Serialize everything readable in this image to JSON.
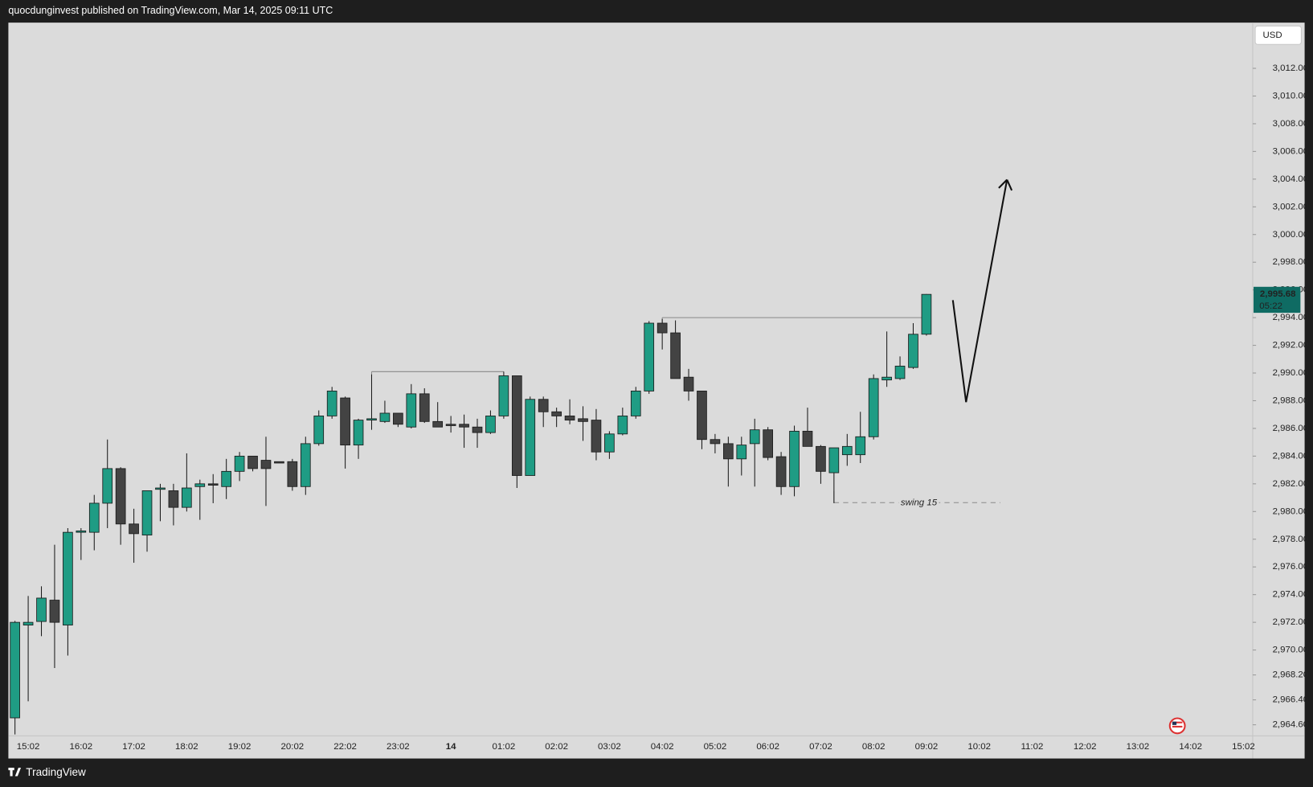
{
  "header": {
    "publisher": "quocdunginvest published on TradingView.com, Mar 14, 2025 09:11 UTC"
  },
  "footer": {
    "brand": "TradingView"
  },
  "chart_data": {
    "type": "candlestick",
    "currency": "USD",
    "up_color": "#1f9c84",
    "down_color": "#434343",
    "categories": [
      null,
      "15:02",
      null,
      null,
      null,
      "16:02",
      null,
      null,
      null,
      "17:02",
      null,
      null,
      null,
      "18:02",
      null,
      null,
      null,
      "19:02",
      null,
      null,
      null,
      "20:02",
      null,
      null,
      null,
      "22:02",
      null,
      null,
      null,
      "23:02",
      null,
      null,
      null,
      "14",
      null,
      null,
      null,
      "01:02",
      null,
      null,
      null,
      "02:02",
      null,
      null,
      null,
      "03:02",
      null,
      null,
      null,
      "04:02",
      null,
      null,
      null,
      "05:02",
      null,
      null,
      null,
      "06:02",
      null,
      null,
      null,
      "07:02",
      null,
      null,
      null,
      "08:02",
      null,
      null,
      null,
      "09:02",
      null,
      null,
      null,
      "10:02",
      null,
      null,
      null,
      "11:02",
      null,
      null,
      null,
      "12:02",
      null,
      null,
      null,
      "13:02",
      null,
      null,
      null,
      "14:02",
      null,
      null,
      null,
      "15:02"
    ],
    "open": [
      2965.1,
      2971.8,
      2972.06,
      2973.6,
      2971.8,
      2978.5,
      2978.5,
      2980.6,
      2983.1,
      2979.1,
      2978.3,
      2981.6,
      2981.5,
      2980.3,
      2981.8,
      2982.0,
      2981.8,
      2982.9,
      2984.0,
      2983.7,
      2983.6,
      2983.6,
      2981.8,
      2984.9,
      2986.9,
      2988.2,
      2984.8,
      2986.6,
      2986.5,
      2987.1,
      2986.1,
      2988.5,
      2986.5,
      2986.3,
      2986.3,
      2986.1,
      2985.7,
      2986.9,
      2989.8,
      2982.6,
      2988.1,
      2987.2,
      2986.9,
      2986.7,
      2986.6,
      2984.3,
      2985.6,
      2986.9,
      2988.7,
      2993.6,
      2992.9,
      2989.7,
      2988.7,
      2985.2,
      2984.9,
      2983.8,
      2984.9,
      2985.9,
      2983.96,
      2981.8,
      2985.8,
      2984.7,
      2982.8,
      2984.1,
      2984.1,
      2985.4,
      2989.5,
      2989.6,
      2990.4,
      2992.8,
      null,
      null,
      null,
      null,
      null,
      null,
      null,
      null,
      null,
      null,
      null,
      null,
      null,
      null,
      null,
      null,
      null,
      null,
      null,
      null,
      null,
      null,
      null,
      null
    ],
    "high": [
      2972.1,
      2973.9,
      2974.6,
      2977.6,
      2978.8,
      2978.8,
      2981.2,
      2985.2,
      2983.2,
      2980.2,
      2981.5,
      2982.0,
      2982.0,
      2984.2,
      2982.3,
      2982.7,
      2983.8,
      2984.3,
      2984.0,
      2985.4,
      2983.6,
      2983.8,
      2985.4,
      2987.3,
      2989.0,
      2988.3,
      2986.7,
      2989.9,
      2988.0,
      2987.1,
      2989.2,
      2988.9,
      2987.9,
      2986.9,
      2987.0,
      2986.7,
      2987.3,
      2990.1,
      2989.8,
      2988.3,
      2988.3,
      2987.5,
      2988.1,
      2987.6,
      2987.4,
      2985.8,
      2987.5,
      2989.0,
      2993.75,
      2993.9,
      2993.8,
      2990.3,
      2988.7,
      2985.6,
      2985.4,
      2985.4,
      2986.7,
      2986.1,
      2984.3,
      2986.2,
      2987.5,
      2984.8,
      2984.6,
      2985.6,
      2987.2,
      2989.9,
      2993.0,
      2991.2,
      2993.6,
      2995.7,
      null,
      null,
      null,
      null,
      null,
      null,
      null,
      null,
      null,
      null,
      null,
      null,
      null,
      null,
      null,
      null,
      null,
      null,
      null,
      null,
      null,
      null,
      null,
      null
    ],
    "low": [
      2963.9,
      2966.3,
      2971.0,
      2968.7,
      2969.6,
      2976.5,
      2977.2,
      2978.8,
      2977.6,
      2976.3,
      2977.1,
      2979.3,
      2979.0,
      2980.0,
      2979.4,
      2980.6,
      2980.9,
      2982.2,
      2982.9,
      2980.4,
      2983.5,
      2981.5,
      2981.2,
      2984.75,
      2986.7,
      2983.1,
      2983.8,
      2985.9,
      2986.4,
      2986.1,
      2986.0,
      2986.4,
      2986.1,
      2985.7,
      2984.6,
      2984.6,
      2985.6,
      2986.7,
      2981.7,
      2982.6,
      2986.1,
      2986.1,
      2986.3,
      2985.1,
      2983.7,
      2983.8,
      2985.5,
      2986.7,
      2988.5,
      2991.7,
      2989.6,
      2988.0,
      2984.5,
      2984.2,
      2981.8,
      2982.6,
      2981.8,
      2983.7,
      2981.2,
      2981.1,
      2984.7,
      2982.0,
      2980.6,
      2983.3,
      2983.5,
      2985.2,
      2989.0,
      2989.5,
      2990.3,
      2992.7,
      null,
      null,
      null,
      null,
      null,
      null,
      null,
      null,
      null,
      null,
      null,
      null,
      null,
      null,
      null,
      null,
      null,
      null,
      null,
      null,
      null,
      null,
      null,
      null
    ],
    "close": [
      2972.0,
      2972.0,
      2973.75,
      2972.0,
      2978.5,
      2978.6,
      2980.6,
      2983.1,
      2979.1,
      2978.4,
      2981.5,
      2981.7,
      2980.3,
      2981.7,
      2982.0,
      2981.9,
      2982.9,
      2984.0,
      2983.1,
      2983.1,
      2983.5,
      2981.8,
      2984.9,
      2986.9,
      2988.7,
      2984.8,
      2986.6,
      2986.7,
      2987.1,
      2986.3,
      2988.5,
      2986.5,
      2986.1,
      2986.2,
      2986.1,
      2985.7,
      2986.9,
      2989.8,
      2982.6,
      2988.1,
      2987.2,
      2986.9,
      2986.6,
      2986.5,
      2984.3,
      2985.6,
      2986.9,
      2988.7,
      2993.6,
      2992.9,
      2989.6,
      2988.7,
      2985.2,
      2984.9,
      2983.8,
      2984.8,
      2985.9,
      2983.9,
      2981.8,
      2985.8,
      2984.7,
      2982.9,
      2984.6,
      2984.7,
      2985.4,
      2989.6,
      2989.7,
      2990.5,
      2992.8,
      2995.68,
      null,
      null,
      null,
      null,
      null,
      null,
      null,
      null,
      null,
      null,
      null,
      null,
      null,
      null,
      null,
      null,
      null,
      null,
      null,
      null,
      null,
      null,
      null,
      null
    ],
    "xlim": [
      -0.5,
      93.7
    ],
    "ylim": [
      2963.8,
      3015.3
    ],
    "yticks": [
      {
        "value": 2964.6,
        "label": "2,964.60"
      },
      {
        "value": 2966.4,
        "label": "2,966.40"
      },
      {
        "value": 2968.2,
        "label": "2,968.20"
      },
      {
        "value": 2970,
        "label": "2,970.00"
      },
      {
        "value": 2972,
        "label": "2,972.00"
      },
      {
        "value": 2974,
        "label": "2,974.00"
      },
      {
        "value": 2976,
        "label": "2,976.00"
      },
      {
        "value": 2978,
        "label": "2,978.00"
      },
      {
        "value": 2980,
        "label": "2,980.00"
      },
      {
        "value": 2982,
        "label": "2,982.00"
      },
      {
        "value": 2984,
        "label": "2,984.00"
      },
      {
        "value": 2986,
        "label": "2,986.00"
      },
      {
        "value": 2988,
        "label": "2,988.00"
      },
      {
        "value": 2990,
        "label": "2,990.00"
      },
      {
        "value": 2992,
        "label": "2,992.00"
      },
      {
        "value": 2994,
        "label": "2,994.00"
      },
      {
        "value": 2996,
        "label": "2,996.00"
      },
      {
        "value": 2998,
        "label": "2,998.00"
      },
      {
        "value": 3000,
        "label": "3,000.00"
      },
      {
        "value": 3002,
        "label": "3,002.00"
      },
      {
        "value": 3004,
        "label": "3,004.00"
      },
      {
        "value": 3006,
        "label": "3,006.00"
      },
      {
        "value": 3008,
        "label": "3,008.00"
      },
      {
        "value": 3010,
        "label": "3,010.00"
      },
      {
        "value": 3012,
        "label": "3,012.00"
      }
    ],
    "last_price": {
      "value": 2995.68,
      "label": "2,995.68"
    },
    "countdown": "05:22",
    "levels": [
      {
        "value": 2990.1,
        "from": 27,
        "to": 37
      },
      {
        "value": 2994.0,
        "from": 49,
        "to": 69
      }
    ],
    "swing": {
      "value": 2980.64,
      "from": 62,
      "to": 74.6,
      "label": "swing 15"
    },
    "arrow": {
      "x": [
        71.0,
        72.0,
        75.1
      ],
      "y": [
        2995.26,
        2987.9,
        3003.96
      ]
    }
  }
}
